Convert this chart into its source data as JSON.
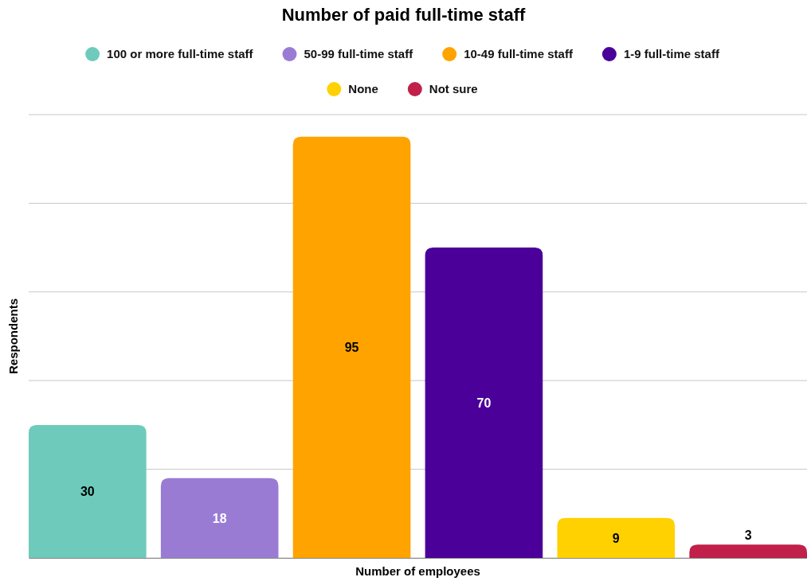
{
  "chart_data": {
    "type": "bar",
    "title": "Number of paid full-time staff",
    "xlabel": "Number of employees",
    "ylabel": "Respondents",
    "categories": [
      null,
      null,
      null,
      null,
      null,
      null
    ],
    "stacked": true,
    "series": [
      {
        "name": "100 or more full-time staff",
        "color": "#6ecbbb",
        "values": [
          30,
          null,
          null,
          null,
          null,
          null
        ]
      },
      {
        "name": "50-99 full-time staff",
        "color": "#9a7bd4",
        "values": [
          null,
          18,
          null,
          null,
          null,
          null
        ]
      },
      {
        "name": "10-49 full-time staff",
        "color": "#ffa300",
        "values": [
          null,
          null,
          95,
          null,
          null,
          null
        ]
      },
      {
        "name": "1-9 full-time staff",
        "color": "#4a0099",
        "values": [
          null,
          null,
          null,
          70,
          null,
          null
        ]
      },
      {
        "name": "None",
        "color": "#ffd100",
        "values": [
          null,
          null,
          null,
          null,
          9,
          null
        ]
      },
      {
        "name": "Not sure",
        "color": "#c0204a",
        "values": [
          null,
          null,
          null,
          null,
          null,
          3
        ]
      }
    ],
    "ylim": [
      0,
      100
    ],
    "yticks": [
      {
        "value": 0,
        "label": null
      },
      {
        "value": 20,
        "label": null
      },
      {
        "value": 40,
        "label": null
      },
      {
        "value": 60,
        "label": null
      },
      {
        "value": 80,
        "label": null
      },
      {
        "value": 100,
        "label": null
      }
    ],
    "grid": "y",
    "legend": "top",
    "data_labels": true
  }
}
